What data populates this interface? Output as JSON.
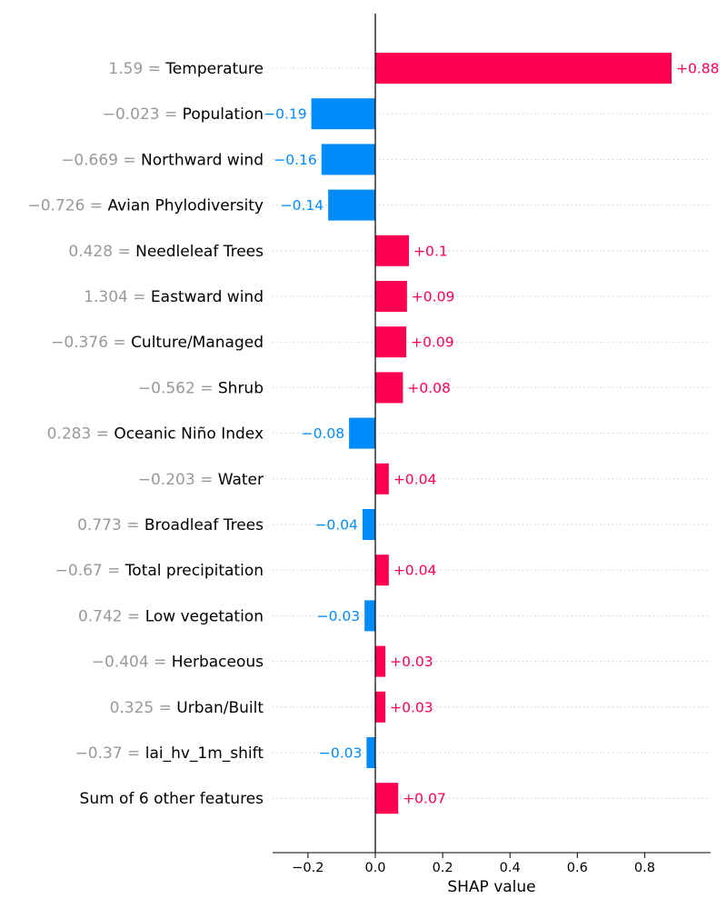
{
  "chart_data": {
    "type": "bar",
    "orientation": "horizontal",
    "xlabel": "SHAP value",
    "xlim": [
      -0.3,
      0.99
    ],
    "xticks": [
      -0.2,
      0.0,
      0.2,
      0.4,
      0.6,
      0.8
    ],
    "xtick_labels": [
      "−0.2",
      "0.0",
      "0.2",
      "0.4",
      "0.6",
      "0.8"
    ],
    "positive_color": "#ff0051",
    "negative_color": "#008bfb",
    "rows": [
      {
        "feature_value": "1.59",
        "feature": "Temperature",
        "shap": 0.88,
        "label": "+0.88"
      },
      {
        "feature_value": "−0.023",
        "feature": "Population",
        "shap": -0.19,
        "label": "−0.19"
      },
      {
        "feature_value": "−0.669",
        "feature": "Northward wind",
        "shap": -0.16,
        "label": "−0.16"
      },
      {
        "feature_value": "−0.726",
        "feature": "Avian Phylodiversity",
        "shap": -0.14,
        "label": "−0.14"
      },
      {
        "feature_value": "0.428",
        "feature": "Needleleaf Trees",
        "shap": 0.1,
        "label": "+0.1"
      },
      {
        "feature_value": "1.304",
        "feature": "Eastward wind",
        "shap": 0.094,
        "label": "+0.09"
      },
      {
        "feature_value": "−0.376",
        "feature": "Culture/Managed",
        "shap": 0.092,
        "label": "+0.09"
      },
      {
        "feature_value": "−0.562",
        "feature": "Shrub",
        "shap": 0.082,
        "label": "+0.08"
      },
      {
        "feature_value": "0.283",
        "feature": "Oceanic Niño Index",
        "shap": -0.078,
        "label": "−0.08"
      },
      {
        "feature_value": "−0.203",
        "feature": "Water",
        "shap": 0.04,
        "label": "+0.04"
      },
      {
        "feature_value": "0.773",
        "feature": "Broadleaf Trees",
        "shap": -0.038,
        "label": "−0.04"
      },
      {
        "feature_value": "−0.67",
        "feature": "Total precipitation",
        "shap": 0.04,
        "label": "+0.04"
      },
      {
        "feature_value": "0.742",
        "feature": "Low vegetation",
        "shap": -0.032,
        "label": "−0.03"
      },
      {
        "feature_value": "−0.404",
        "feature": "Herbaceous",
        "shap": 0.03,
        "label": "+0.03"
      },
      {
        "feature_value": "0.325",
        "feature": "Urban/Built",
        "shap": 0.03,
        "label": "+0.03"
      },
      {
        "feature_value": "−0.37",
        "feature": "lai_hv_1m_shift",
        "shap": -0.026,
        "label": "−0.03"
      },
      {
        "feature_value": "",
        "feature": "Sum of 6 other features",
        "shap": 0.068,
        "label": "+0.07"
      }
    ]
  }
}
